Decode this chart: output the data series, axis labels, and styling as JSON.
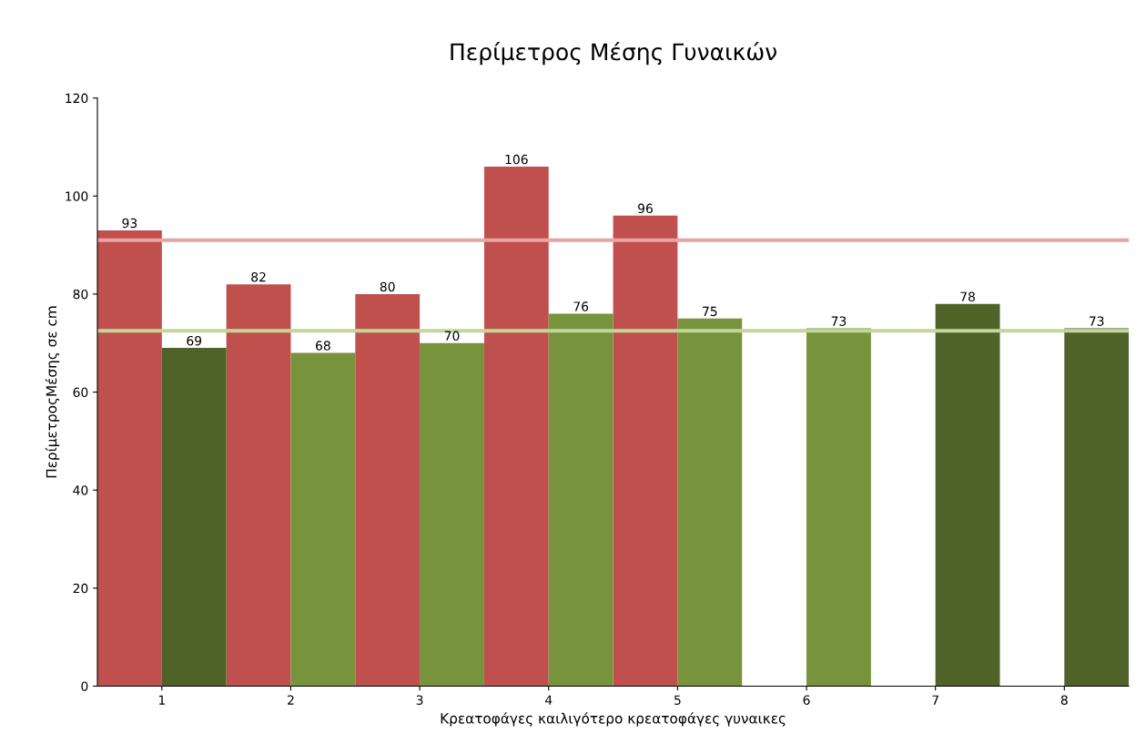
{
  "chart_data": {
    "type": "bar",
    "title": "Περίμετρος Μέσης Γυναικών",
    "xlabel": "Κρεατοφάγες καιλιγότερο κρεατοφάγες γυναικες",
    "ylabel": "ΠερίμετροςΜέσης σε cm",
    "categories": [
      "1",
      "2",
      "3",
      "4",
      "5",
      "6",
      "7",
      "8"
    ],
    "series": [
      {
        "color": "#c0504d",
        "values": [
          93,
          82,
          80,
          106,
          96,
          null,
          null,
          null
        ]
      },
      {
        "color": "#77933c",
        "colors": [
          "#4f6228",
          "#77933c",
          "#77933c",
          "#77933c",
          "#77933c",
          "#77933c",
          "#4f6228",
          "#4f6228"
        ],
        "values": [
          69,
          68,
          70,
          76,
          75,
          73,
          78,
          73
        ]
      }
    ],
    "ylim": [
      0,
      120
    ],
    "yticks": [
      0,
      20,
      40,
      60,
      80,
      100,
      120
    ],
    "ref_lines": [
      {
        "axis": "y",
        "value": 91,
        "color": "#e6a5a3"
      },
      {
        "axis": "y",
        "value": 72.5,
        "color": "#c3d69b"
      }
    ],
    "data_labels": true,
    "grid": false,
    "legend": false
  }
}
